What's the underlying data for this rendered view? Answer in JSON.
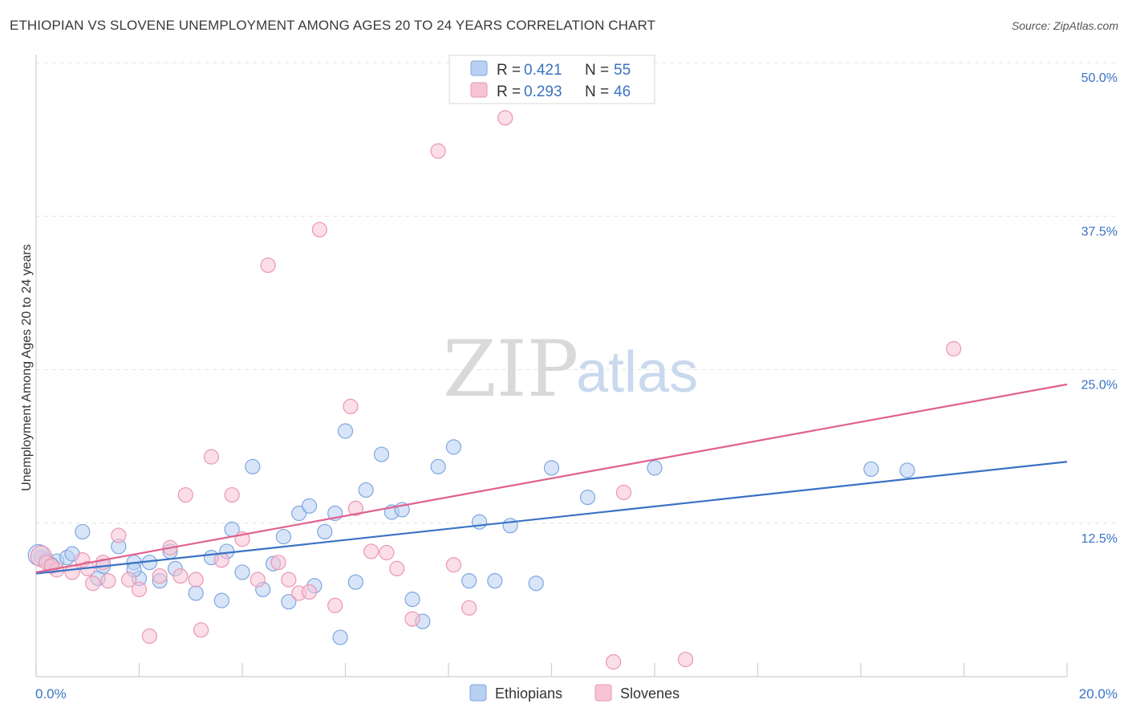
{
  "title": "ETHIOPIAN VS SLOVENE UNEMPLOYMENT AMONG AGES 20 TO 24 YEARS CORRELATION CHART",
  "source": "Source: ZipAtlas.com",
  "watermark": {
    "zip": "ZIP",
    "atlas": "atlas"
  },
  "legend": {
    "rows": [
      {
        "r_label": "R =",
        "r_value": "0.421",
        "n_label": "N =",
        "n_value": "55",
        "fill": "#b8d0f2",
        "stroke": "#7ea6e0"
      },
      {
        "r_label": "R =",
        "r_value": "0.293",
        "n_label": "N =",
        "n_value": "46",
        "fill": "#f7c3d3",
        "stroke": "#ea97b2"
      }
    ]
  },
  "chart_data": {
    "type": "scatter",
    "title": "ETHIOPIAN VS SLOVENE UNEMPLOYMENT AMONG AGES 20 TO 24 YEARS CORRELATION CHART",
    "xlabel": "",
    "ylabel": "Unemployment Among Ages 20 to 24 years",
    "xlim": [
      0,
      20
    ],
    "ylim": [
      0,
      50
    ],
    "x_ticks": [
      0,
      2,
      4,
      6,
      8,
      10,
      12,
      14,
      16,
      18,
      20
    ],
    "x_tick_labels": {
      "0": "0.0%",
      "20": "20.0%"
    },
    "y_ticks": [
      12.5,
      25,
      37.5,
      50
    ],
    "y_tick_labels": [
      "12.5%",
      "25.0%",
      "37.5%",
      "50.0%"
    ],
    "grid": true,
    "legend_position": "bottom-center",
    "series": [
      {
        "name": "Ethiopians",
        "color": "#3a72c4",
        "fill": "#b8d0f2",
        "stroke": "#7ea6e0",
        "trendline": [
          [
            0,
            8.4
          ],
          [
            20,
            17.5
          ]
        ],
        "points": [
          [
            0.1,
            9.7
          ],
          [
            0.2,
            9.5
          ],
          [
            0.4,
            9.4
          ],
          [
            0.6,
            9.7
          ],
          [
            0.7,
            10.0
          ],
          [
            0.9,
            11.8
          ],
          [
            1.2,
            8.0
          ],
          [
            1.3,
            9.0
          ],
          [
            1.6,
            10.6
          ],
          [
            1.9,
            9.3
          ],
          [
            2.0,
            8.0
          ],
          [
            2.2,
            9.3
          ],
          [
            2.4,
            7.8
          ],
          [
            2.6,
            10.2
          ],
          [
            2.7,
            8.8
          ],
          [
            3.1,
            6.8
          ],
          [
            3.4,
            9.7
          ],
          [
            3.6,
            6.2
          ],
          [
            3.7,
            10.2
          ],
          [
            3.8,
            12.0
          ],
          [
            4.0,
            8.5
          ],
          [
            4.2,
            17.1
          ],
          [
            4.4,
            7.1
          ],
          [
            4.6,
            9.2
          ],
          [
            4.8,
            11.4
          ],
          [
            4.9,
            6.1
          ],
          [
            5.1,
            13.3
          ],
          [
            5.3,
            13.9
          ],
          [
            5.4,
            7.4
          ],
          [
            5.6,
            11.8
          ],
          [
            5.8,
            13.3
          ],
          [
            5.9,
            3.2
          ],
          [
            6.0,
            20.0
          ],
          [
            6.2,
            7.7
          ],
          [
            6.4,
            15.2
          ],
          [
            6.7,
            18.1
          ],
          [
            6.9,
            13.4
          ],
          [
            7.1,
            13.6
          ],
          [
            7.3,
            6.3
          ],
          [
            7.5,
            4.5
          ],
          [
            7.8,
            17.1
          ],
          [
            8.1,
            18.7
          ],
          [
            8.4,
            7.8
          ],
          [
            8.6,
            12.6
          ],
          [
            8.9,
            7.8
          ],
          [
            9.2,
            12.3
          ],
          [
            9.7,
            7.6
          ],
          [
            10.0,
            17.0
          ],
          [
            10.7,
            14.6
          ],
          [
            12.0,
            17.0
          ],
          [
            16.2,
            16.9
          ],
          [
            16.9,
            16.8
          ],
          [
            0.05,
            9.9
          ],
          [
            0.3,
            9.1
          ],
          [
            1.9,
            8.7
          ]
        ]
      },
      {
        "name": "Slovenes",
        "color": "#e0608e",
        "fill": "#f7c3d3",
        "stroke": "#ea97b2",
        "trendline": [
          [
            0,
            8.5
          ],
          [
            20,
            23.8
          ]
        ],
        "points": [
          [
            0.1,
            9.8
          ],
          [
            0.2,
            9.3
          ],
          [
            0.4,
            8.7
          ],
          [
            0.7,
            8.5
          ],
          [
            0.9,
            9.5
          ],
          [
            1.1,
            7.6
          ],
          [
            1.3,
            9.3
          ],
          [
            1.4,
            7.8
          ],
          [
            1.6,
            11.5
          ],
          [
            1.8,
            7.9
          ],
          [
            2.0,
            7.1
          ],
          [
            2.2,
            3.3
          ],
          [
            2.4,
            8.2
          ],
          [
            2.6,
            10.5
          ],
          [
            2.8,
            8.2
          ],
          [
            2.9,
            14.8
          ],
          [
            3.1,
            7.9
          ],
          [
            3.2,
            3.8
          ],
          [
            3.4,
            17.9
          ],
          [
            3.6,
            9.5
          ],
          [
            3.8,
            14.8
          ],
          [
            4.0,
            11.2
          ],
          [
            4.3,
            7.9
          ],
          [
            4.5,
            33.5
          ],
          [
            4.7,
            9.3
          ],
          [
            4.9,
            7.9
          ],
          [
            5.1,
            6.8
          ],
          [
            5.3,
            6.9
          ],
          [
            5.5,
            36.4
          ],
          [
            5.8,
            5.8
          ],
          [
            6.1,
            22.0
          ],
          [
            6.2,
            13.7
          ],
          [
            6.5,
            10.2
          ],
          [
            6.8,
            10.1
          ],
          [
            7.0,
            8.8
          ],
          [
            7.3,
            4.7
          ],
          [
            7.8,
            42.8
          ],
          [
            8.1,
            9.1
          ],
          [
            8.4,
            5.6
          ],
          [
            9.1,
            45.5
          ],
          [
            11.2,
            1.2
          ],
          [
            11.4,
            15.0
          ],
          [
            12.6,
            1.4
          ],
          [
            17.8,
            26.7
          ],
          [
            0.3,
            9.0
          ],
          [
            1.0,
            8.8
          ]
        ]
      }
    ]
  }
}
